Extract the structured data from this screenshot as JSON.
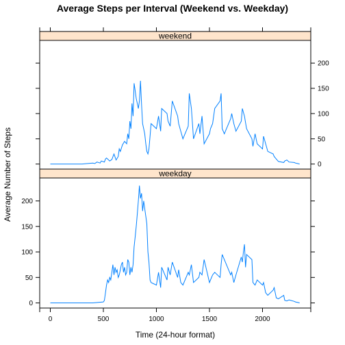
{
  "chart_data": {
    "type": "line",
    "title": "Average Steps per Interval (Weekend vs. Weekday)",
    "xlabel": "Time (24-hour format)",
    "ylabel": "Average Number of Steps",
    "xlim": [
      -100,
      2455
    ],
    "x_ticks": [
      0,
      500,
      1000,
      1500,
      2000
    ],
    "y_ticks": [
      0,
      50,
      100,
      150,
      200
    ],
    "strip_color": "#ffe5cc",
    "line_color": "#0080ff",
    "panels": [
      {
        "name": "weekend",
        "ylim": [
          -10,
          245
        ],
        "y_axis_side": "right",
        "series": [
          {
            "x": [
              0,
              100,
              200,
              300,
              400,
              420,
              440,
              470,
              480,
              510,
              520,
              530,
              560,
              580,
              600,
              620,
              640,
              650,
              660,
              680,
              700,
              720,
              730,
              740,
              750,
              760,
              770,
              780,
              790,
              800,
              810,
              820,
              830,
              840,
              850,
              860,
              870,
              880,
              890,
              900,
              910,
              920,
              930,
              940,
              950,
              1000,
              1020,
              1040,
              1050,
              1100,
              1110,
              1130,
              1150,
              1200,
              1210,
              1230,
              1250,
              1300,
              1310,
              1330,
              1350,
              1400,
              1410,
              1430,
              1450,
              1500,
              1510,
              1530,
              1550,
              1600,
              1610,
              1620,
              1640,
              1700,
              1710,
              1730,
              1750,
              1800,
              1810,
              1830,
              1850,
              1900,
              1910,
              1930,
              1950,
              2000,
              2010,
              2030,
              2050,
              2100,
              2110,
              2130,
              2150,
              2200,
              2210,
              2230,
              2250,
              2300,
              2310,
              2330,
              2350
            ],
            "values": [
              0,
              0,
              0,
              0,
              2,
              1,
              4,
              2,
              6,
              4,
              10,
              12,
              6,
              9,
              20,
              8,
              15,
              30,
              25,
              38,
              45,
              40,
              60,
              50,
              85,
              70,
              120,
              95,
              160,
              145,
              130,
              120,
              110,
              125,
              165,
              118,
              80,
              70,
              60,
              40,
              25,
              20,
              30,
              55,
              80,
              70,
              95,
              65,
              110,
              100,
              85,
              75,
              125,
              95,
              80,
              65,
              50,
              75,
              140,
              110,
              50,
              80,
              60,
              95,
              40,
              60,
              70,
              80,
              110,
              125,
              140,
              70,
              60,
              90,
              100,
              80,
              65,
              85,
              110,
              95,
              70,
              50,
              35,
              60,
              40,
              30,
              55,
              40,
              25,
              20,
              15,
              10,
              5,
              3,
              6,
              8,
              4,
              3,
              2,
              1,
              0
            ]
          }
        ]
      },
      {
        "name": "weekday",
        "ylim": [
          -10,
          245
        ],
        "y_axis_side": "left",
        "series": [
          {
            "x": [
              0,
              100,
              200,
              300,
              400,
              500,
              510,
              520,
              530,
              540,
              550,
              560,
              570,
              580,
              590,
              600,
              610,
              620,
              630,
              640,
              650,
              660,
              670,
              680,
              690,
              700,
              710,
              720,
              730,
              740,
              750,
              760,
              770,
              780,
              790,
              800,
              810,
              820,
              830,
              840,
              850,
              860,
              870,
              880,
              890,
              900,
              910,
              920,
              930,
              940,
              950,
              1000,
              1020,
              1040,
              1050,
              1100,
              1110,
              1130,
              1150,
              1200,
              1210,
              1230,
              1250,
              1300,
              1310,
              1330,
              1350,
              1400,
              1410,
              1430,
              1450,
              1500,
              1510,
              1530,
              1550,
              1600,
              1610,
              1620,
              1640,
              1700,
              1710,
              1730,
              1750,
              1800,
              1810,
              1820,
              1830,
              1840,
              1850,
              1900,
              1910,
              1930,
              1950,
              2000,
              2010,
              2030,
              2050,
              2100,
              2110,
              2130,
              2150,
              2200,
              2210,
              2230,
              2250,
              2300,
              2310,
              2330,
              2350
            ],
            "values": [
              0,
              0,
              0,
              0,
              0,
              2,
              5,
              20,
              35,
              45,
              40,
              50,
              45,
              60,
              75,
              55,
              70,
              60,
              65,
              50,
              55,
              65,
              75,
              80,
              60,
              70,
              55,
              60,
              85,
              80,
              55,
              70,
              60,
              75,
              110,
              130,
              150,
              175,
              200,
              230,
              205,
              215,
              180,
              200,
              185,
              170,
              155,
              100,
              80,
              45,
              40,
              35,
              60,
              30,
              70,
              45,
              70,
              55,
              80,
              50,
              65,
              40,
              35,
              60,
              55,
              75,
              40,
              50,
              60,
              55,
              85,
              40,
              45,
              55,
              60,
              50,
              75,
              95,
              85,
              55,
              60,
              40,
              55,
              90,
              80,
              100,
              115,
              70,
              95,
              85,
              40,
              35,
              45,
              35,
              40,
              20,
              15,
              25,
              30,
              10,
              8,
              15,
              5,
              4,
              6,
              3,
              2,
              1,
              0
            ]
          }
        ]
      }
    ]
  }
}
